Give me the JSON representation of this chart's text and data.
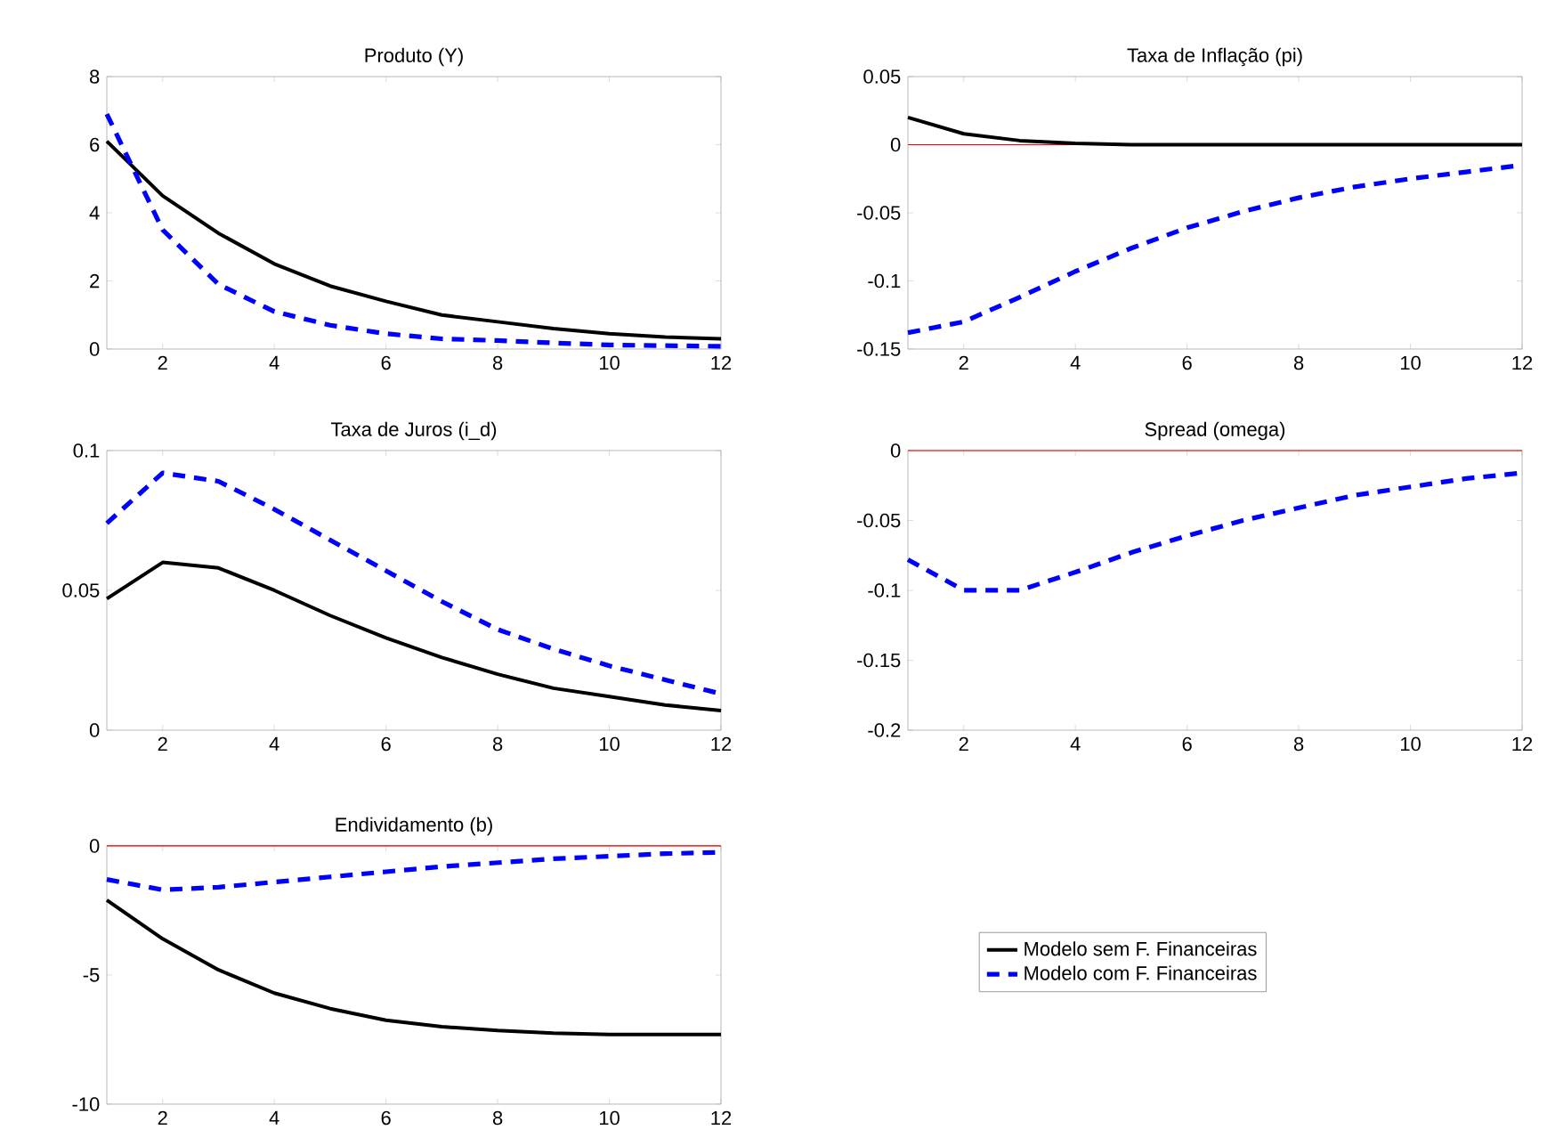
{
  "chart_data": [
    {
      "type": "line",
      "title": "Produto (Y)",
      "x": [
        1,
        2,
        3,
        4,
        5,
        6,
        7,
        8,
        9,
        10,
        11,
        12
      ],
      "xlim": [
        1,
        12
      ],
      "xticks": [
        2,
        4,
        6,
        8,
        10,
        12
      ],
      "ylim": [
        0,
        8
      ],
      "yticks": [
        0,
        2,
        4,
        6,
        8
      ],
      "series": [
        {
          "color": "#000000",
          "line_style": "solid",
          "values": [
            6.1,
            4.5,
            3.4,
            2.5,
            1.85,
            1.4,
            1.0,
            0.8,
            0.6,
            0.45,
            0.35,
            0.3
          ]
        },
        {
          "color": "#0000ff",
          "line_style": "dashed",
          "values": [
            6.9,
            3.5,
            1.9,
            1.1,
            0.7,
            0.45,
            0.3,
            0.25,
            0.18,
            0.12,
            0.1,
            0.08
          ]
        }
      ]
    },
    {
      "type": "line",
      "title": "Taxa de Inflação (pi)",
      "x": [
        1,
        2,
        3,
        4,
        5,
        6,
        7,
        8,
        9,
        10,
        11,
        12
      ],
      "xlim": [
        1,
        12
      ],
      "xticks": [
        2,
        4,
        6,
        8,
        10,
        12
      ],
      "ylim": [
        -0.15,
        0.05
      ],
      "yticks": [
        -0.15,
        -0.1,
        -0.05,
        0,
        0.05
      ],
      "ref_lines": [
        {
          "axis": "y",
          "value": 0,
          "color": "#ff0000"
        }
      ],
      "series": [
        {
          "color": "#000000",
          "line_style": "solid",
          "values": [
            0.02,
            0.008,
            0.003,
            0.001,
            0,
            0,
            0,
            0,
            0,
            0,
            0,
            0
          ]
        },
        {
          "color": "#0000ff",
          "line_style": "dashed",
          "values": [
            -0.138,
            -0.13,
            -0.112,
            -0.093,
            -0.076,
            -0.061,
            -0.049,
            -0.039,
            -0.031,
            -0.025,
            -0.02,
            -0.015
          ]
        }
      ]
    },
    {
      "type": "line",
      "title": "Taxa de Juros (i_d)",
      "x": [
        1,
        2,
        3,
        4,
        5,
        6,
        7,
        8,
        9,
        10,
        11,
        12
      ],
      "xlim": [
        1,
        12
      ],
      "xticks": [
        2,
        4,
        6,
        8,
        10,
        12
      ],
      "ylim": [
        0,
        0.1
      ],
      "yticks": [
        0,
        0.05,
        0.1
      ],
      "series": [
        {
          "color": "#000000",
          "line_style": "solid",
          "values": [
            0.047,
            0.06,
            0.058,
            0.05,
            0.041,
            0.033,
            0.026,
            0.02,
            0.015,
            0.012,
            0.009,
            0.007
          ]
        },
        {
          "color": "#0000ff",
          "line_style": "dashed",
          "values": [
            0.074,
            0.092,
            0.089,
            0.079,
            0.068,
            0.057,
            0.046,
            0.036,
            0.029,
            0.023,
            0.018,
            0.013
          ]
        }
      ]
    },
    {
      "type": "line",
      "title": "Spread (omega)",
      "x": [
        1,
        2,
        3,
        4,
        5,
        6,
        7,
        8,
        9,
        10,
        11,
        12
      ],
      "xlim": [
        1,
        12
      ],
      "xticks": [
        2,
        4,
        6,
        8,
        10,
        12
      ],
      "ylim": [
        -0.2,
        0
      ],
      "yticks": [
        -0.2,
        -0.15,
        -0.1,
        -0.05,
        0
      ],
      "ref_lines": [
        {
          "axis": "y",
          "value": 0,
          "color": "#ff0000"
        }
      ],
      "series": [
        {
          "color": "#0000ff",
          "line_style": "dashed",
          "values": [
            -0.078,
            -0.1,
            -0.1,
            -0.087,
            -0.073,
            -0.061,
            -0.05,
            -0.041,
            -0.032,
            -0.026,
            -0.02,
            -0.016
          ]
        }
      ]
    },
    {
      "type": "line",
      "title": "Endividamento (b)",
      "x": [
        1,
        2,
        3,
        4,
        5,
        6,
        7,
        8,
        9,
        10,
        11,
        12
      ],
      "xlim": [
        1,
        12
      ],
      "xticks": [
        2,
        4,
        6,
        8,
        10,
        12
      ],
      "ylim": [
        -10,
        0
      ],
      "yticks": [
        -10,
        -5,
        0
      ],
      "ref_lines": [
        {
          "axis": "y",
          "value": 0,
          "color": "#ff0000"
        }
      ],
      "legend": "right",
      "series": [
        {
          "name": "Modelo sem F. Financeiras",
          "color": "#000000",
          "line_style": "solid",
          "values": [
            -2.1,
            -3.6,
            -4.8,
            -5.7,
            -6.3,
            -6.75,
            -7.0,
            -7.15,
            -7.25,
            -7.3,
            -7.3,
            -7.3
          ]
        },
        {
          "name": "Modelo com F. Financeiras",
          "color": "#0000ff",
          "line_style": "dashed",
          "values": [
            -1.3,
            -1.7,
            -1.6,
            -1.4,
            -1.2,
            -1.0,
            -0.8,
            -0.65,
            -0.5,
            -0.4,
            -0.3,
            -0.25
          ]
        }
      ]
    }
  ]
}
